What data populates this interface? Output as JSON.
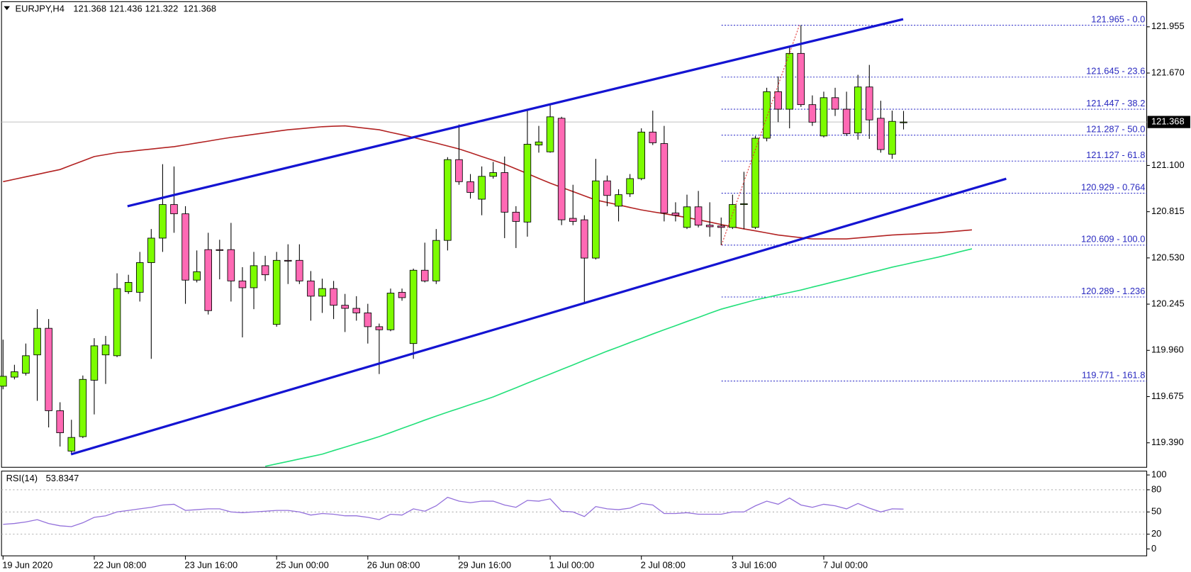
{
  "chart_data": {
    "type": "candlestick",
    "title": "EURJPY,H4",
    "categories": [
      "19 Jun 2020",
      null,
      null,
      null,
      null,
      null,
      null,
      null,
      "22 Jun 08:00",
      null,
      null,
      null,
      null,
      null,
      null,
      null,
      "23 Jun 16:00",
      null,
      null,
      null,
      null,
      null,
      null,
      null,
      "25 Jun 00:00",
      null,
      null,
      null,
      null,
      null,
      null,
      null,
      "26 Jun 08:00",
      null,
      null,
      null,
      null,
      null,
      null,
      null,
      "29 Jun 16:00",
      null,
      null,
      null,
      null,
      null,
      null,
      null,
      "1 Jul 00:00",
      null,
      null,
      null,
      null,
      null,
      null,
      null,
      "2 Jul 08:00",
      null,
      null,
      null,
      null,
      null,
      null,
      null,
      "3 Jul 16:00",
      null,
      null,
      null,
      null,
      null,
      null,
      null,
      "7 Jul 00:00",
      null,
      null,
      null,
      null,
      null,
      null,
      null
    ],
    "open": [
      119.739,
      119.795,
      119.819,
      119.932,
      120.096,
      119.588,
      119.339,
      119.428,
      119.776,
      119.932,
      119.927,
      120.322,
      120.318,
      120.501,
      120.652,
      120.859,
      120.802,
      120.393,
      120.581,
      120.581,
      120.581,
      120.388,
      120.346,
      120.482,
      120.12,
      120.515,
      120.515,
      120.388,
      120.294,
      120.341,
      120.238,
      120.219,
      120.191,
      120.106,
      120.087,
      120.318,
      120.002,
      120.454,
      120.388,
      120.638,
      121.136,
      121.0,
      120.892,
      121.033,
      121.056,
      120.812,
      120.751,
      121.226,
      121.184,
      121.391,
      120.774,
      120.765,
      120.529,
      121.005,
      120.849,
      120.925,
      121.019,
      121.306,
      121.235,
      120.807,
      120.718,
      120.845,
      120.732,
      120.727,
      120.718,
      120.859,
      120.718,
      121.268,
      121.555,
      121.447,
      121.791,
      121.475,
      121.282,
      121.518,
      121.447,
      121.301,
      121.584,
      121.391,
      121.169,
      121.368
    ],
    "high": [
      120.026,
      119.871,
      120.002,
      120.214,
      120.153,
      119.64,
      119.532,
      119.805,
      120.035,
      120.049,
      120.435,
      120.426,
      120.567,
      120.708,
      121.108,
      121.094,
      120.849,
      120.576,
      120.685,
      120.642,
      120.746,
      120.473,
      120.567,
      120.543,
      120.567,
      120.614,
      120.614,
      120.449,
      120.402,
      120.388,
      120.308,
      120.294,
      120.247,
      120.125,
      120.341,
      120.341,
      120.464,
      120.624,
      120.708,
      121.151,
      121.353,
      121.047,
      121.094,
      121.122,
      121.155,
      120.849,
      121.438,
      121.344,
      121.471,
      121.4,
      120.981,
      120.793,
      121.141,
      121.038,
      120.953,
      121.047,
      121.329,
      121.438,
      121.344,
      120.873,
      120.92,
      120.943,
      120.873,
      120.779,
      120.92,
      121.061,
      121.282,
      121.579,
      121.649,
      121.838,
      121.965,
      121.532,
      121.555,
      121.579,
      121.555,
      121.659,
      121.72,
      121.499,
      121.438,
      121.436
    ],
    "low": [
      119.72,
      119.781,
      119.805,
      119.649,
      119.485,
      119.367,
      119.32,
      119.419,
      119.565,
      119.753,
      119.918,
      120.308,
      120.261,
      119.908,
      120.567,
      120.685,
      120.247,
      120.379,
      120.181,
      120.398,
      120.261,
      120.04,
      120.214,
      120.388,
      120.106,
      120.369,
      120.369,
      120.143,
      120.191,
      120.153,
      120.073,
      120.143,
      120.002,
      119.814,
      120.078,
      120.266,
      119.908,
      120.379,
      120.369,
      120.576,
      120.981,
      120.896,
      120.793,
      121.019,
      120.652,
      120.591,
      120.661,
      121.179,
      121.179,
      120.732,
      120.732,
      120.252,
      120.52,
      120.849,
      120.755,
      120.906,
      121.009,
      121.226,
      120.755,
      120.755,
      120.708,
      120.718,
      120.661,
      120.609,
      120.708,
      120.708,
      120.708,
      121.249,
      121.367,
      121.329,
      121.461,
      121.344,
      121.273,
      121.405,
      121.282,
      121.259,
      121.264,
      121.179,
      121.141,
      121.322
    ],
    "close": [
      119.8,
      119.828,
      119.927,
      120.096,
      119.588,
      119.452,
      119.423,
      119.781,
      119.988,
      119.993,
      120.341,
      120.379,
      120.501,
      120.652,
      120.859,
      120.802,
      120.393,
      120.445,
      120.205,
      120.576,
      120.388,
      120.346,
      120.482,
      120.426,
      120.515,
      120.511,
      120.388,
      120.294,
      120.341,
      120.238,
      120.219,
      120.191,
      120.106,
      120.087,
      120.313,
      120.285,
      120.454,
      120.388,
      120.638,
      121.136,
      121.0,
      120.934,
      121.033,
      121.056,
      120.812,
      120.755,
      121.231,
      121.245,
      121.4,
      120.765,
      120.755,
      120.529,
      121.005,
      120.915,
      120.92,
      121.019,
      121.306,
      121.24,
      120.807,
      120.793,
      120.845,
      120.732,
      120.722,
      120.718,
      120.859,
      120.864,
      121.268,
      121.555,
      121.447,
      121.791,
      121.475,
      121.367,
      121.518,
      121.447,
      121.296,
      121.584,
      121.381,
      121.198,
      121.372,
      121.368
    ],
    "up_color": "#7cfc00",
    "down_color": "#ff69b4",
    "ylim": [
      119.239,
      122.11
    ],
    "yticks": [
      121.955,
      {
        "value": 121.67,
        "label": "121.670"
      },
      {
        "value": 121.1,
        "label": "121.100"
      },
      120.815,
      {
        "value": 120.53,
        "label": "120.530"
      },
      120.245,
      {
        "value": 119.96,
        "label": "119.960"
      },
      119.675,
      {
        "value": 119.39,
        "label": "119.390"
      }
    ],
    "moving_averages": [
      {
        "color": "#b22222",
        "values": [
          121.0,
          121.015,
          121.03,
          121.045,
          121.06,
          121.075,
          121.102,
          121.128,
          121.155,
          121.167,
          121.179,
          121.186,
          121.194,
          121.201,
          121.209,
          121.216,
          121.227,
          121.239,
          121.25,
          121.262,
          121.273,
          121.282,
          121.292,
          121.301,
          121.311,
          121.32,
          121.326,
          121.333,
          121.339,
          121.342,
          121.344,
          121.336,
          121.328,
          121.32,
          121.304,
          121.289,
          121.273,
          121.255,
          121.238,
          121.22,
          121.202,
          121.179,
          121.155,
          121.132,
          121.108,
          121.079,
          121.05,
          121.02,
          120.991,
          120.965,
          120.939,
          120.913,
          120.887,
          120.872,
          120.857,
          120.841,
          120.826,
          120.814,
          120.803,
          120.791,
          120.779,
          120.765,
          120.751,
          120.736,
          120.722,
          120.709,
          120.697,
          120.684,
          120.671,
          120.663,
          120.655,
          120.647,
          120.647,
          120.647,
          120.647,
          120.653,
          120.659,
          120.665,
          120.671,
          120.675,
          120.678,
          120.682,
          120.685,
          120.691,
          120.697,
          120.703
        ]
      },
      {
        "color": "#22e07a",
        "values": [
          null,
          null,
          null,
          null,
          null,
          null,
          null,
          null,
          null,
          null,
          null,
          null,
          null,
          null,
          null,
          null,
          null,
          null,
          null,
          null,
          null,
          null,
          null,
          119.245,
          119.26,
          119.275,
          119.29,
          119.305,
          119.32,
          119.342,
          119.363,
          119.385,
          119.406,
          119.428,
          119.453,
          119.479,
          119.504,
          119.53,
          119.555,
          119.579,
          119.602,
          119.626,
          119.649,
          119.673,
          119.701,
          119.729,
          119.758,
          119.786,
          119.814,
          119.842,
          119.87,
          119.899,
          119.927,
          119.955,
          119.981,
          120.008,
          120.034,
          120.061,
          120.087,
          120.112,
          120.138,
          120.163,
          120.189,
          120.214,
          120.233,
          120.252,
          120.271,
          120.286,
          120.302,
          120.317,
          120.332,
          120.35,
          120.367,
          120.385,
          120.402,
          120.42,
          120.438,
          120.455,
          120.473,
          120.488,
          120.504,
          120.519,
          120.534,
          120.551,
          120.569,
          120.586
        ]
      }
    ],
    "fib_levels": [
      {
        "value": 121.965,
        "label": "121.965 - 0.0"
      },
      {
        "value": 121.645,
        "label": "121.645 - 23.6"
      },
      {
        "value": 121.447,
        "label": "121.447 - 38.2"
      },
      {
        "value": 121.287,
        "label": "121.287 - 50.0"
      },
      {
        "value": 121.127,
        "label": "121.127 - 61.8"
      },
      {
        "value": 120.929,
        "label": "120.929 - 0.764"
      },
      {
        "value": 120.609,
        "label": "120.609 - 100.0"
      },
      {
        "value": 120.289,
        "label": "120.289 - 1.236"
      },
      {
        "value": 119.771,
        "label": "119.771 - 161.8"
      }
    ],
    "indicator": {
      "type": "line",
      "title": "RSI(14)",
      "color": "#9370db",
      "values": [
        33.3,
        34.4,
        36.5,
        39.6,
        34.4,
        31.3,
        30.2,
        35.4,
        42.7,
        44.8,
        50.0,
        52.1,
        54.2,
        56.3,
        59.4,
        60.4,
        52.1,
        53.1,
        54.2,
        54.2,
        50.0,
        49.0,
        50.0,
        51.0,
        52.1,
        52.1,
        50.0,
        45.8,
        47.9,
        46.9,
        44.8,
        44.8,
        42.7,
        39.6,
        46.9,
        45.8,
        54.2,
        51.0,
        58.3,
        69.8,
        64.6,
        62.5,
        64.6,
        64.6,
        59.4,
        56.3,
        65.6,
        64.6,
        67.7,
        51.0,
        50.0,
        43.8,
        57.3,
        54.2,
        53.1,
        55.2,
        61.5,
        59.4,
        47.9,
        47.9,
        49.0,
        46.9,
        46.9,
        46.9,
        50.0,
        50.0,
        58.3,
        64.6,
        60.4,
        68.8,
        59.4,
        56.3,
        60.4,
        58.3,
        54.2,
        61.5,
        55.2,
        50.0,
        54.2,
        53.8347
      ],
      "ylim": [
        -9.3,
        105.2
      ],
      "yticks": [
        100,
        80,
        50,
        20,
        0
      ]
    }
  }
}
